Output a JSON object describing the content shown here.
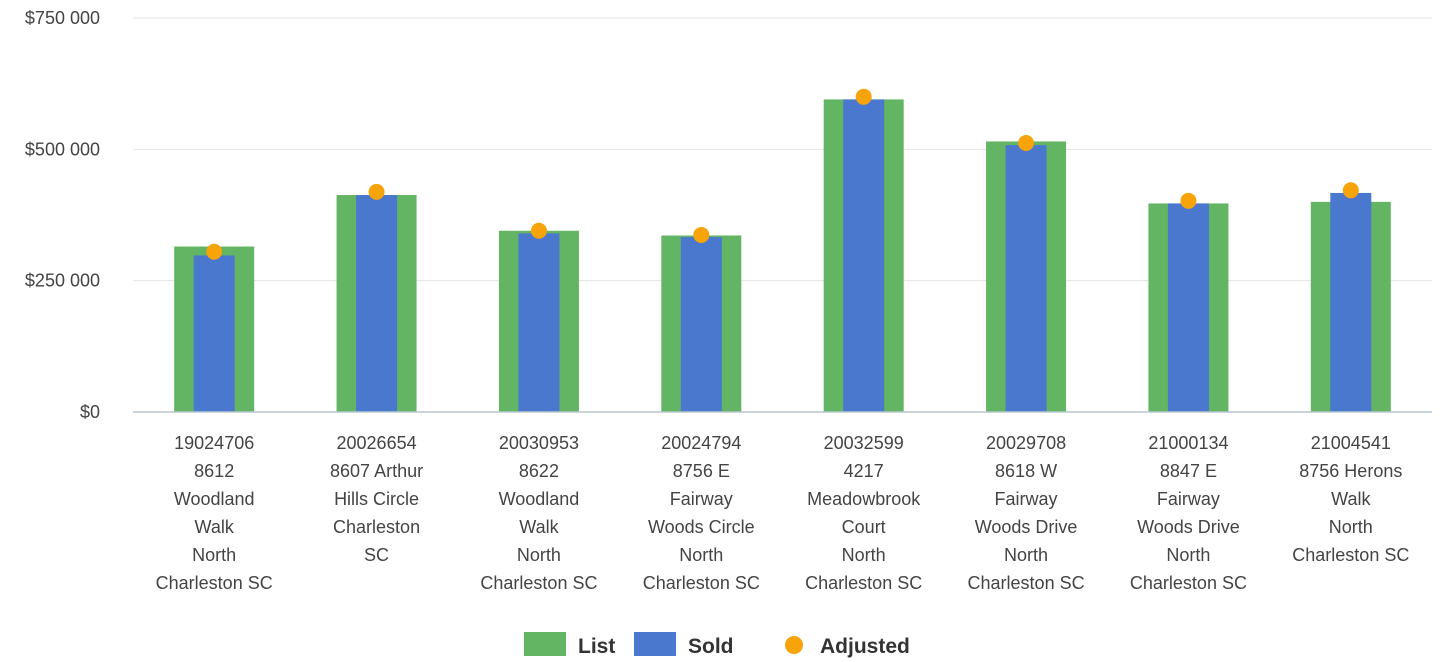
{
  "colors": {
    "list": "#63b463",
    "sold": "#4a78cf",
    "adjusted": "#f7a30a",
    "grid": "#e3e3e3",
    "axis": "#b7c7cf"
  },
  "chart_data": {
    "type": "bar",
    "ylim": [
      0,
      750000
    ],
    "yticks": [
      {
        "value": 0,
        "label": "$0"
      },
      {
        "value": 250000,
        "label": "$250 000"
      },
      {
        "value": 500000,
        "label": "$500 000"
      },
      {
        "value": 750000,
        "label": "$750 000"
      }
    ],
    "categories": [
      [
        "19024706",
        "8612",
        "Woodland",
        "Walk",
        "North",
        "Charleston SC"
      ],
      [
        "20026654",
        "8607 Arthur",
        "Hills Circle",
        "Charleston",
        "SC"
      ],
      [
        "20030953",
        "8622",
        "Woodland",
        "Walk",
        "North",
        "Charleston SC"
      ],
      [
        "20024794",
        "8756 E",
        "Fairway",
        "Woods Circle",
        "North",
        "Charleston SC"
      ],
      [
        "20032599",
        "4217",
        "Meadowbrook",
        "Court",
        "North",
        "Charleston SC"
      ],
      [
        "20029708",
        "8618 W",
        "Fairway",
        "Woods Drive",
        "North",
        "Charleston SC"
      ],
      [
        "21000134",
        "8847 E",
        "Fairway",
        "Woods Drive",
        "North",
        "Charleston SC"
      ],
      [
        "21004541",
        "8756 Herons",
        "Walk",
        "North",
        "Charleston SC"
      ]
    ],
    "series": [
      {
        "name": "List",
        "kind": "bar-wide",
        "color": "#63b463",
        "values": [
          315000,
          413000,
          345000,
          336000,
          595000,
          515000,
          397000,
          400000
        ]
      },
      {
        "name": "Sold",
        "kind": "bar-narrow",
        "color": "#4a78cf",
        "values": [
          298000,
          413000,
          340000,
          333000,
          595000,
          508000,
          397000,
          417000
        ]
      },
      {
        "name": "Adjusted",
        "kind": "point",
        "color": "#f7a30a",
        "values": [
          305000,
          419000,
          345000,
          337000,
          600000,
          512000,
          402000,
          422000
        ]
      }
    ],
    "legend_position": "bottom",
    "grid": true
  }
}
